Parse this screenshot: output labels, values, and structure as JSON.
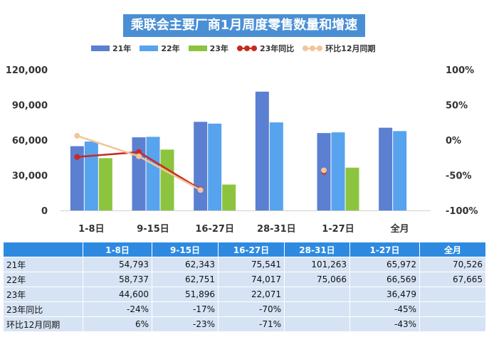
{
  "chart_data": {
    "type": "bar",
    "title": "乘联会主要厂商1月周度零售数量和增速",
    "categories": [
      "1-8日",
      "9-15日",
      "16-27日",
      "28-31日",
      "1-27日",
      "全月"
    ],
    "series": [
      {
        "name": "21年",
        "type": "bar",
        "color": "#5b7fd1",
        "values": [
          54793,
          62343,
          75541,
          101263,
          65972,
          70526
        ]
      },
      {
        "name": "22年",
        "type": "bar",
        "color": "#57a3ee",
        "values": [
          58737,
          62751,
          74017,
          75066,
          66569,
          67665
        ]
      },
      {
        "name": "23年",
        "type": "bar",
        "color": "#8dc43f",
        "values": [
          44600,
          51896,
          22071,
          null,
          36479,
          null
        ]
      },
      {
        "name": "23年同比",
        "type": "line",
        "axis": "right",
        "color": "#c92a1f",
        "values": [
          -24,
          -17,
          -70,
          null,
          -45,
          null
        ]
      },
      {
        "name": "环比12月同期",
        "type": "line",
        "axis": "right",
        "color": "#f2c59a",
        "values": [
          6,
          -23,
          -71,
          null,
          -43,
          null
        ]
      }
    ],
    "y_left": {
      "min": 0,
      "max": 120000,
      "ticks": [
        "0",
        "30,000",
        "60,000",
        "90,000",
        "120,000"
      ]
    },
    "y_right": {
      "min": -100,
      "max": 100,
      "ticks": [
        "-100%",
        "-50%",
        "0%",
        "50%",
        "100%"
      ]
    },
    "legend_position": "top",
    "grid": false
  },
  "table": {
    "headers": [
      "",
      "1-8日",
      "9-15日",
      "16-27日",
      "28-31日",
      "1-27日",
      "全月"
    ],
    "rows": [
      {
        "label": "21年",
        "cells": [
          "54,793",
          "62,343",
          "75,541",
          "101,263",
          "65,972",
          "70,526"
        ]
      },
      {
        "label": "22年",
        "cells": [
          "58,737",
          "62,751",
          "74,017",
          "75,066",
          "66,569",
          "67,665"
        ]
      },
      {
        "label": "23年",
        "cells": [
          "44,600",
          "51,896",
          "22,071",
          "",
          "36,479",
          ""
        ]
      },
      {
        "label": "23年同比",
        "cells": [
          "-24%",
          "-17%",
          "-70%",
          "",
          "-45%",
          ""
        ]
      },
      {
        "label": "环比12月同期",
        "cells": [
          "6%",
          "-23%",
          "-71%",
          "",
          "-43%",
          ""
        ]
      }
    ]
  }
}
